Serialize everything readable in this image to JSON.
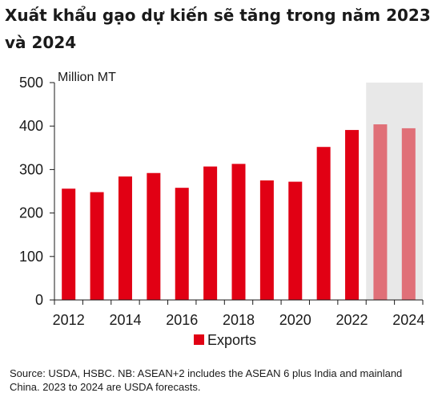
{
  "title": "Xuất khẩu gạo dự kiến sẽ tăng trong năm 2023 và 2024",
  "source_note": "Source: USDA, HSBC. NB: ASEAN+2 includes the ASEAN 6 plus India and mainland China. 2023 to 2024 are USDA forecasts.",
  "colors": {
    "actual": "#e10014",
    "forecast": "#e07078",
    "forecast_band": "#e8e8e8"
  },
  "chart_data": {
    "type": "bar",
    "ylabel": "Million MT",
    "ylim": [
      0,
      500
    ],
    "yticks": [
      "0",
      "100",
      "200",
      "300",
      "400",
      "500"
    ],
    "xtick_labels": [
      "2012",
      "2014",
      "2016",
      "2018",
      "2020",
      "2022",
      "2024"
    ],
    "categories": [
      "2012",
      "2013",
      "2014",
      "2015",
      "2016",
      "2017",
      "2018",
      "2019",
      "2020",
      "2021",
      "2022",
      "2023",
      "2024"
    ],
    "series": [
      {
        "name": "Exports",
        "values": [
          256,
          248,
          284,
          292,
          258,
          307,
          313,
          275,
          272,
          352,
          391,
          404,
          395
        ]
      }
    ],
    "forecast_categories": [
      "2023",
      "2024"
    ],
    "legend": "bottom-center",
    "grid": false
  }
}
